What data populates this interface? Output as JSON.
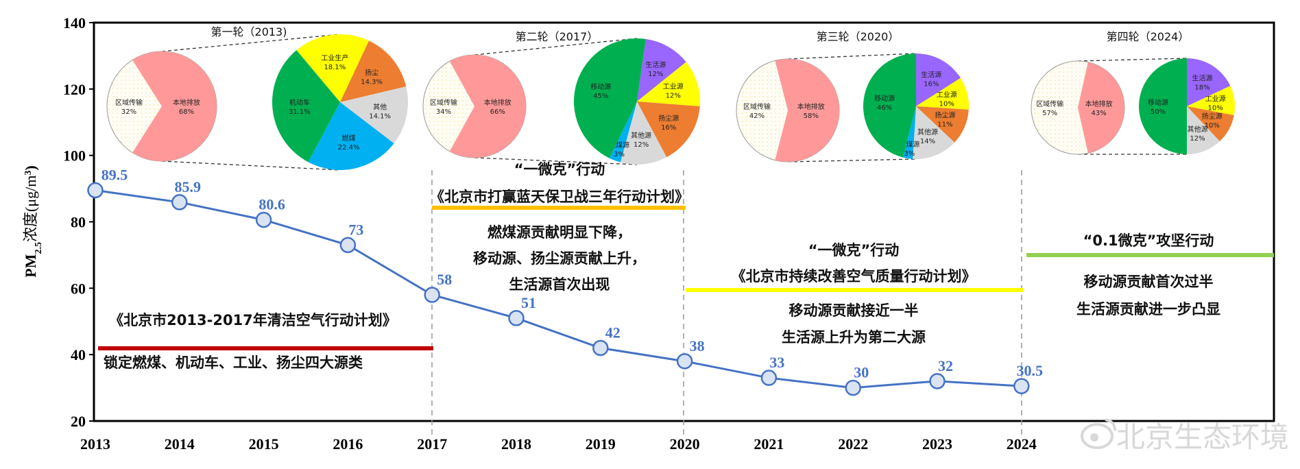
{
  "chart_data": {
    "type": "line",
    "x": [
      2013,
      2014,
      2015,
      2016,
      2017,
      2018,
      2019,
      2020,
      2021,
      2022,
      2023,
      2024
    ],
    "series": [
      {
        "values": [
          89.5,
          85.9,
          80.6,
          73,
          58,
          51,
          42,
          38,
          33,
          30,
          32,
          30.5
        ],
        "color": "#4472C4",
        "marker_fill": "#DAE3F3"
      }
    ],
    "data_labels": [
      "89.5",
      "85.9",
      "80.6",
      "73",
      "58",
      "51",
      "42",
      "38",
      "33",
      "30",
      "32",
      "30.5"
    ],
    "ylim": [
      20,
      140
    ],
    "yticks": [
      20,
      40,
      60,
      80,
      100,
      120,
      140
    ],
    "ylabel": {
      "main": "PM",
      "sub": "2.5",
      "mid": "浓度(μg/m",
      "sup": "3",
      "end": ")"
    },
    "xlabel": "",
    "grid": false,
    "pies": [
      {
        "title": "第一轮（2013)",
        "regional": {
          "label": "区域传输",
          "value": 32
        },
        "local": {
          "label": "本地排放",
          "value": 68
        },
        "sources": [
          {
            "label": "工业生产",
            "value": 18.1,
            "color": "#FFFF00"
          },
          {
            "label": "扬尘",
            "value": 14.3,
            "color": "#ED7D31"
          },
          {
            "label": "其他",
            "value": 14.1,
            "color": "#D9D9D9"
          },
          {
            "label": "燃煤",
            "value": 22.4,
            "color": "#00B0F0"
          },
          {
            "label": "机动车",
            "value": 31.1,
            "color": "#00B050"
          }
        ]
      },
      {
        "title": "第二轮（2017）",
        "regional": {
          "label": "区域传输",
          "value": 34
        },
        "local": {
          "label": "本地排放",
          "value": 66
        },
        "sources": [
          {
            "label": "生活源",
            "value": 12,
            "color": "#9966FF"
          },
          {
            "label": "工业源",
            "value": 12,
            "color": "#FFFF00"
          },
          {
            "label": "扬尘源",
            "value": 16,
            "color": "#ED7D31"
          },
          {
            "label": "其他源",
            "value": 12,
            "color": "#D9D9D9"
          },
          {
            "label": "燃煤源",
            "value": 3,
            "color": "#00B0F0"
          },
          {
            "label": "移动源",
            "value": 45,
            "color": "#00B050"
          }
        ]
      },
      {
        "title": "第三轮（2020）",
        "regional": {
          "label": "区域传输",
          "value": 42
        },
        "local": {
          "label": "本地排放",
          "value": 58
        },
        "sources": [
          {
            "label": "生活源",
            "value": 16,
            "color": "#9966FF"
          },
          {
            "label": "工业源",
            "value": 10,
            "color": "#FFFF00"
          },
          {
            "label": "扬尘源",
            "value": 11,
            "color": "#ED7D31"
          },
          {
            "label": "其他源",
            "value": 14,
            "color": "#D9D9D9"
          },
          {
            "label": "燃煤源",
            "value": 3,
            "color": "#00B0F0"
          },
          {
            "label": "移动源",
            "value": 46,
            "color": "#00B050"
          }
        ]
      },
      {
        "title": "第四轮（2024）",
        "regional": {
          "label": "区域传输",
          "value": 57
        },
        "local": {
          "label": "本地排放",
          "value": 43
        },
        "sources": [
          {
            "label": "生活源",
            "value": 18,
            "color": "#9966FF"
          },
          {
            "label": "工业源",
            "value": 10,
            "color": "#FFFF00"
          },
          {
            "label": "扬尘源",
            "value": 10,
            "color": "#ED7D31"
          },
          {
            "label": "其他源",
            "value": 12,
            "color": "#D9D9D9"
          },
          {
            "label": "移动源",
            "value": 50,
            "color": "#00B050"
          }
        ]
      }
    ],
    "pie_colors": {
      "local": "#FF9999",
      "regional": "#FFFDF5"
    },
    "annotations": [
      {
        "lines": [
          "《北京市2013-2017年清洁空气行动计划》"
        ],
        "bar_color": "#C00000",
        "notes": [
          "锁定燃煤、机动车、工业、扬尘四大源类"
        ]
      },
      {
        "lines": [
          "“一微克”行动",
          "《北京市打赢蓝天保卫战三年行动计划》"
        ],
        "bar_color": "#FFC000",
        "notes": [
          "燃煤源贡献明显下降，",
          "移动源、扬尘源贡献上升，",
          "生活源首次出现"
        ]
      },
      {
        "lines": [
          "“一微克”行动",
          "《北京市持续改善空气质量行动计划》"
        ],
        "bar_color": "#FFFF00",
        "notes": [
          "移动源贡献接近一半",
          "生活源上升为第二大源"
        ]
      },
      {
        "lines": [
          "“0.1微克”攻坚行动"
        ],
        "bar_color": "#92D050",
        "notes": [
          "移动源贡献首次过半",
          "生活源贡献进一步凸显"
        ]
      }
    ],
    "watermark": "北京生态环境"
  }
}
